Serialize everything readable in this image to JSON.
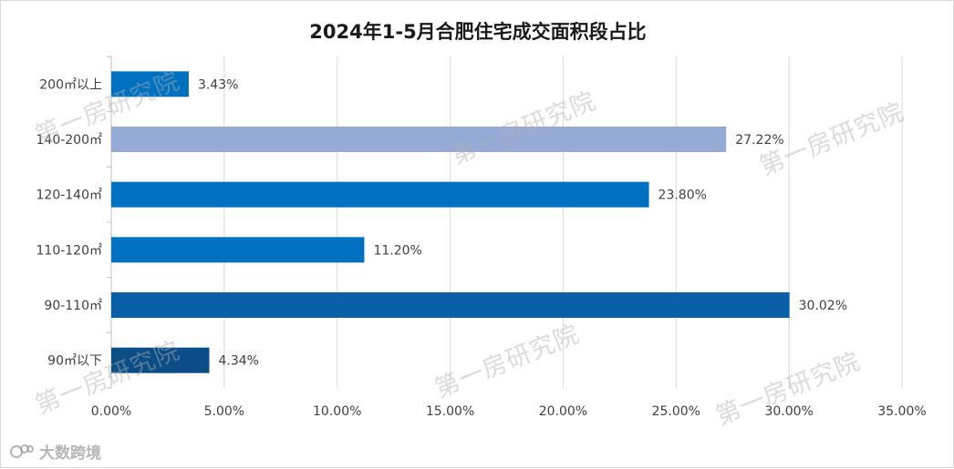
{
  "chart_data": {
    "type": "bar",
    "orientation": "horizontal",
    "title": "2024年1-5月合肥住宅成交面积段占比",
    "categories": [
      "200㎡以上",
      "140-200㎡",
      "120-140㎡",
      "110-120㎡",
      "90-110㎡",
      "90㎡以下"
    ],
    "values": [
      3.43,
      27.22,
      23.8,
      11.2,
      30.02,
      4.34
    ],
    "value_labels": [
      "3.43%",
      "27.22%",
      "23.80%",
      "11.20%",
      "30.02%",
      "4.34%"
    ],
    "bar_colors": [
      "#0070c0",
      "#95abd6",
      "#0070c0",
      "#0070c0",
      "#0a5fa7",
      "#0b4d87"
    ],
    "x_ticks": [
      "0.00%",
      "5.00%",
      "10.00%",
      "15.00%",
      "20.00%",
      "25.00%",
      "30.00%",
      "35.00%"
    ],
    "xlim": [
      0,
      35
    ],
    "grid": true,
    "xlabel": "",
    "ylabel": ""
  },
  "watermark": "第一房研究院",
  "brand": "大数跨境"
}
